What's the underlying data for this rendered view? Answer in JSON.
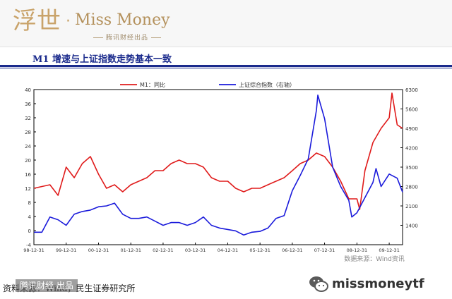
{
  "header": {
    "brand_seal": "浮世",
    "brand_dot": "·",
    "brand_name": "Miss Money",
    "brand_sub": "腾讯财经出品"
  },
  "page": {
    "title": "M1 增速与上证指数走势基本一致"
  },
  "chart_data": {
    "type": "line",
    "title": "",
    "legend_position": "top",
    "grid": false,
    "left_axis": {
      "min": -4,
      "max": 40,
      "ticks": [
        "-4",
        "0",
        "4",
        "8",
        "12",
        "16",
        "20",
        "24",
        "28",
        "32",
        "36",
        "40"
      ]
    },
    "right_axis": {
      "min": 700,
      "max": 6300,
      "ticks": [
        "1400",
        "2100",
        "2800",
        "3500",
        "4200",
        "4900",
        "5600",
        "6300"
      ]
    },
    "x_ticks": [
      "98-12-31",
      "99-12-31",
      "00-12-31",
      "01-12-31",
      "02-12-31",
      "03-12-31",
      "04-12-31",
      "05-12-31",
      "06-12-31",
      "07-12-31",
      "08-12-31",
      "09-12-31"
    ],
    "x_range": [
      "1998-12-31",
      "2010-05-31"
    ],
    "series": [
      {
        "name": "M1：同比",
        "axis": "left",
        "color": "#e01b1b",
        "points": [
          [
            "1998-12-31",
            12
          ],
          [
            "1999-06-30",
            13
          ],
          [
            "1999-09-30",
            10
          ],
          [
            "1999-12-31",
            18
          ],
          [
            "2000-03-31",
            15
          ],
          [
            "2000-06-30",
            19
          ],
          [
            "2000-09-30",
            21
          ],
          [
            "2000-12-31",
            16
          ],
          [
            "2001-03-31",
            12
          ],
          [
            "2001-06-30",
            13
          ],
          [
            "2001-09-30",
            11
          ],
          [
            "2001-12-31",
            13
          ],
          [
            "2002-03-31",
            14
          ],
          [
            "2002-06-30",
            15
          ],
          [
            "2002-09-30",
            17
          ],
          [
            "2002-12-31",
            17
          ],
          [
            "2003-03-31",
            19
          ],
          [
            "2003-06-30",
            20
          ],
          [
            "2003-09-30",
            19
          ],
          [
            "2003-12-31",
            19
          ],
          [
            "2004-03-31",
            18
          ],
          [
            "2004-06-30",
            15
          ],
          [
            "2004-09-30",
            14
          ],
          [
            "2004-12-31",
            14
          ],
          [
            "2005-03-31",
            12
          ],
          [
            "2005-06-30",
            11
          ],
          [
            "2005-09-30",
            12
          ],
          [
            "2005-12-31",
            12
          ],
          [
            "2006-03-31",
            13
          ],
          [
            "2006-06-30",
            14
          ],
          [
            "2006-09-30",
            15
          ],
          [
            "2006-12-31",
            17
          ],
          [
            "2007-03-31",
            19
          ],
          [
            "2007-06-30",
            20
          ],
          [
            "2007-09-30",
            22
          ],
          [
            "2007-12-31",
            21
          ],
          [
            "2008-03-31",
            18
          ],
          [
            "2008-06-30",
            14
          ],
          [
            "2008-09-30",
            9
          ],
          [
            "2008-12-31",
            9
          ],
          [
            "2009-01-31",
            6
          ],
          [
            "2009-03-31",
            17
          ],
          [
            "2009-06-30",
            25
          ],
          [
            "2009-09-30",
            29
          ],
          [
            "2009-12-31",
            32
          ],
          [
            "2010-01-31",
            39
          ],
          [
            "2010-03-31",
            30
          ],
          [
            "2010-05-31",
            29
          ]
        ]
      },
      {
        "name": "上证综合指数（右轴）",
        "axis": "right",
        "color": "#1a1adb",
        "points": [
          [
            "1998-12-31",
            1150
          ],
          [
            "1999-03-31",
            1150
          ],
          [
            "1999-06-30",
            1700
          ],
          [
            "1999-09-30",
            1600
          ],
          [
            "1999-12-31",
            1400
          ],
          [
            "2000-03-31",
            1800
          ],
          [
            "2000-06-30",
            1900
          ],
          [
            "2000-09-30",
            1950
          ],
          [
            "2000-12-31",
            2070
          ],
          [
            "2001-03-31",
            2100
          ],
          [
            "2001-06-30",
            2200
          ],
          [
            "2001-09-30",
            1800
          ],
          [
            "2001-12-31",
            1650
          ],
          [
            "2002-03-31",
            1650
          ],
          [
            "2002-06-30",
            1700
          ],
          [
            "2002-09-30",
            1550
          ],
          [
            "2002-12-31",
            1400
          ],
          [
            "2003-03-31",
            1500
          ],
          [
            "2003-06-30",
            1500
          ],
          [
            "2003-09-30",
            1400
          ],
          [
            "2003-12-31",
            1500
          ],
          [
            "2004-03-31",
            1700
          ],
          [
            "2004-06-30",
            1400
          ],
          [
            "2004-09-30",
            1300
          ],
          [
            "2004-12-31",
            1250
          ],
          [
            "2005-03-31",
            1200
          ],
          [
            "2005-06-30",
            1050
          ],
          [
            "2005-09-30",
            1150
          ],
          [
            "2005-12-31",
            1180
          ],
          [
            "2006-03-31",
            1300
          ],
          [
            "2006-06-30",
            1650
          ],
          [
            "2006-09-30",
            1750
          ],
          [
            "2006-12-31",
            2650
          ],
          [
            "2007-03-31",
            3200
          ],
          [
            "2007-06-30",
            3800
          ],
          [
            "2007-09-30",
            5550
          ],
          [
            "2007-10-16",
            6100
          ],
          [
            "2007-12-31",
            5250
          ],
          [
            "2008-03-31",
            3500
          ],
          [
            "2008-06-30",
            2800
          ],
          [
            "2008-09-30",
            2300
          ],
          [
            "2008-11-03",
            1700
          ],
          [
            "2008-12-31",
            1850
          ],
          [
            "2009-03-31",
            2400
          ],
          [
            "2009-06-30",
            2950
          ],
          [
            "2009-08-04",
            3450
          ],
          [
            "2009-09-30",
            2800
          ],
          [
            "2009-12-31",
            3250
          ],
          [
            "2010-03-31",
            3100
          ],
          [
            "2010-05-31",
            2600
          ]
        ]
      }
    ],
    "source": "数据来源：Wind资讯"
  },
  "footer": {
    "source_text": "资料来源：Wind，民生证券研究所",
    "tag": "腾讯财经 出品",
    "handle": "missmoneytf"
  }
}
